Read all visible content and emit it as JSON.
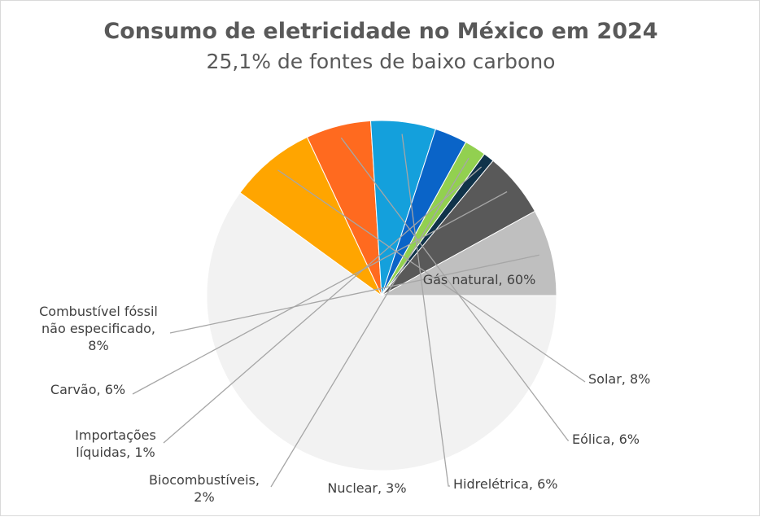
{
  "chart_data": {
    "type": "pie",
    "title": "Consumo de eletricidade no México em 2024",
    "subtitle": "25,1% de fontes de baixo carbono",
    "slices": [
      {
        "name": "Gás natural",
        "value": 60,
        "label": "Gás natural, 60%",
        "color": "#f2f2f2"
      },
      {
        "name": "Solar",
        "value": 8,
        "label": "Solar, 8%",
        "color": "#ffa500"
      },
      {
        "name": "Eólica",
        "value": 6,
        "label": "Eólica, 6%",
        "color": "#ff6a1f"
      },
      {
        "name": "Hidrelétrica",
        "value": 6,
        "label": "Hidrelétrica, 6%",
        "color": "#14a0dc"
      },
      {
        "name": "Nuclear",
        "value": 3,
        "label": "Nuclear, 3%",
        "color": "#0a64c8"
      },
      {
        "name": "Biocombustíveis",
        "value": 2,
        "label_lines": [
          "Biocombustíveis,",
          "2%"
        ],
        "color": "#92d050"
      },
      {
        "name": "Importações líquidas",
        "value": 1,
        "label_lines": [
          "Importações",
          "líquidas, 1%"
        ],
        "color": "#10334a"
      },
      {
        "name": "Carvão",
        "value": 6,
        "label": "Carvão, 6%",
        "color": "#595959"
      },
      {
        "name": "Combustível fóssil não especificado",
        "value": 8,
        "label_lines": [
          "Combustível fóssil",
          "não especificado,",
          "8%"
        ],
        "color": "#bfbfbf"
      }
    ]
  }
}
